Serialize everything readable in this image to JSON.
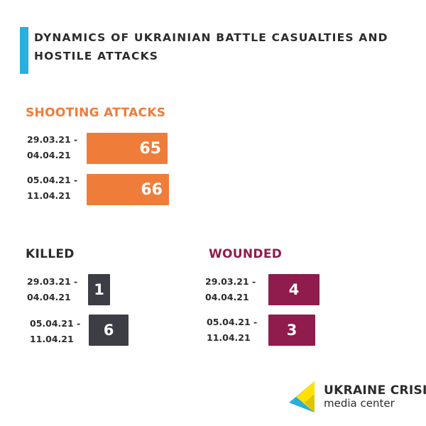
{
  "title": "DYNAMICS OF UKRAINIAN BATTLE CASUALTIES AND HOSTILE ATTACKS",
  "colors": {
    "accent": "#29aee0",
    "shooting": "#f07c3a",
    "killed": "#3d3d45",
    "wounded": "#8f1c4c"
  },
  "chart_data": [
    {
      "type": "bar",
      "title": "SHOOTING ATTACKS",
      "categories": [
        "29.03.21 - 04.04.21",
        "05.04.21 - 11.04.21"
      ],
      "category_lines": [
        [
          "29.03.21 -",
          "04.04.21"
        ],
        [
          "05.04.21 -",
          "11.04.21"
        ]
      ],
      "values": [
        65,
        66
      ],
      "orientation": "horizontal",
      "grid": false
    },
    {
      "type": "bar",
      "title": "KILLED",
      "categories": [
        "29.03.21 - 04.04.21",
        "05.04.21 - 11.04.21"
      ],
      "category_lines": [
        [
          "29.03.21 -",
          "04.04.21"
        ],
        [
          "05.04.21 -",
          "11.04.21"
        ]
      ],
      "values": [
        1,
        6
      ],
      "orientation": "horizontal",
      "grid": false
    },
    {
      "type": "bar",
      "title": "WOUNDED",
      "categories": [
        "29.03.21 - 04.04.21",
        "05.04.21 - 11.04.21"
      ],
      "category_lines": [
        [
          "29.03.21 -",
          "04.04.21"
        ],
        [
          "05.04.21 -",
          "11.04.21"
        ]
      ],
      "values": [
        4,
        3
      ],
      "orientation": "horizontal",
      "grid": false
    }
  ],
  "logo": {
    "line1": "UKRAINE CRISIS",
    "line2": "media center"
  }
}
